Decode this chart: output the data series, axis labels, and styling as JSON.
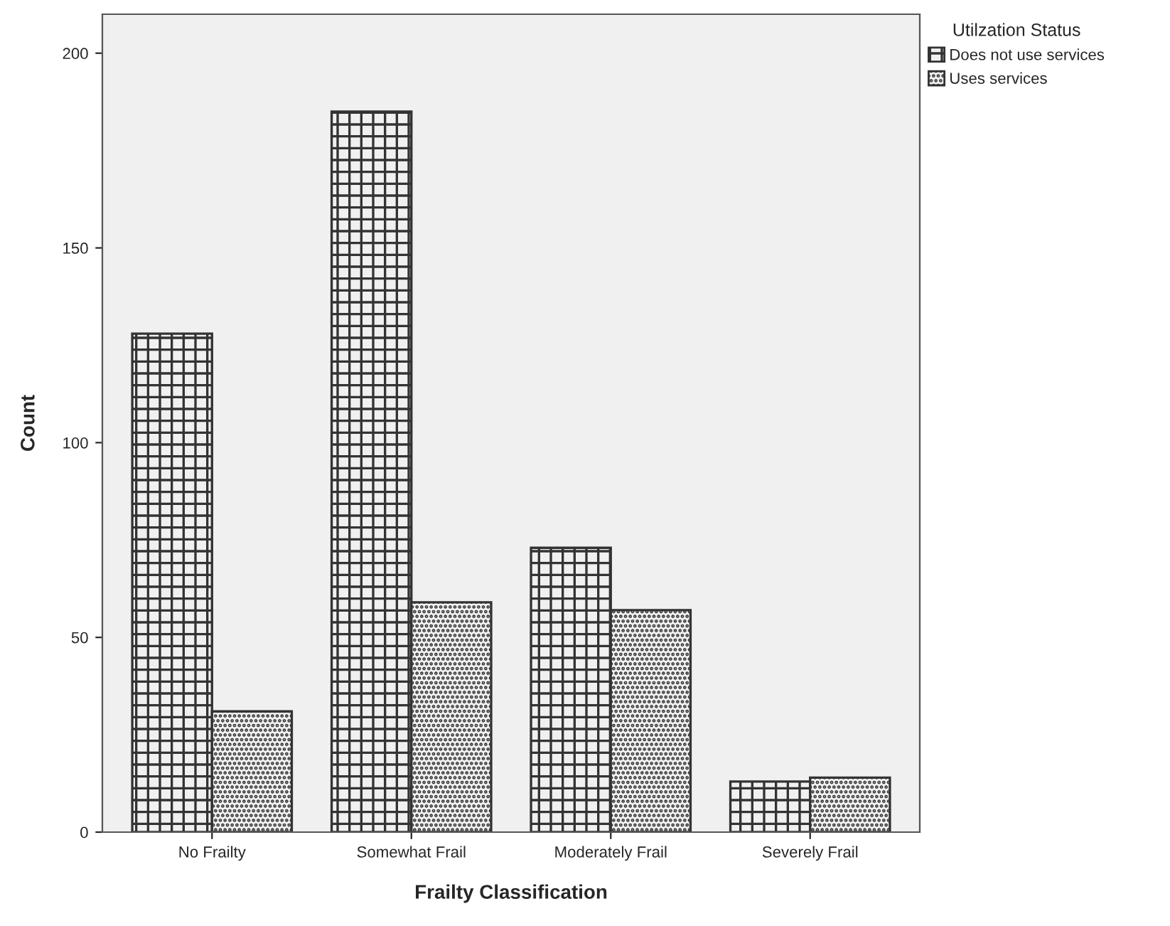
{
  "chart_data": {
    "type": "bar",
    "xlabel": "Frailty Classification",
    "ylabel": "Count",
    "legend_title": "Utilzation Status",
    "categories": [
      "No Frailty",
      "Somewhat Frail",
      "Moderately Frail",
      "Severely Frail"
    ],
    "series": [
      {
        "name": "Does not use services",
        "color": "#333333",
        "values": [
          128,
          185,
          73,
          13
        ]
      },
      {
        "name": "Uses services",
        "color": "#333333",
        "values": [
          31,
          59,
          57,
          14
        ]
      }
    ],
    "ylim": [
      0,
      210
    ],
    "yticks": [
      0,
      50,
      100,
      150,
      200
    ],
    "grid": false,
    "legend": "top right"
  }
}
